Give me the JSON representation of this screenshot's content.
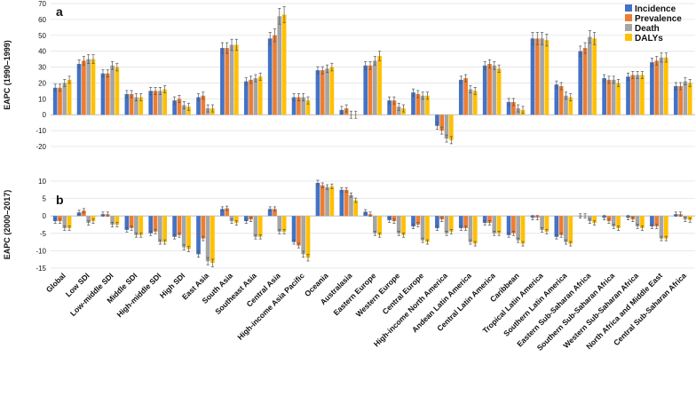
{
  "chart_data": [
    {
      "type": "bar",
      "panel_label": "a",
      "ylabel": "EAPC (1990–1999)",
      "ylim": [
        -20,
        70
      ],
      "yticks": [
        -20,
        -10,
        0,
        10,
        20,
        30,
        40,
        50,
        60,
        70
      ],
      "categories": [
        "Global",
        "Low SDI",
        "Low-middle SDI",
        "Middle SDI",
        "High-middle SDI",
        "High SDI",
        "East Asia",
        "South Asia",
        "Southeast Asia",
        "Central Asia",
        "High-income Asia Pacific",
        "Oceania",
        "Australasia",
        "Eastern Europe",
        "Western Europe",
        "Central Europe",
        "High-income North America",
        "Andean Latin America",
        "Central Latin America",
        "Caribbean",
        "Tropical Latin America",
        "Southern Latin America",
        "Eastern Sub-Saharan Africa",
        "Southern Sub-Saharan Africa",
        "Western Sub-Saharan Africa",
        "North Africa and Middle East",
        "Central Sub-Saharan Africa"
      ],
      "series": [
        {
          "name": "Incidence",
          "color": "#4472C4",
          "values": [
            17,
            32,
            26,
            13,
            15,
            9,
            11,
            42,
            21,
            48,
            11,
            28,
            3,
            31,
            9,
            14,
            -7,
            22,
            31,
            8,
            48,
            19,
            40,
            23,
            24,
            33,
            18
          ]
        },
        {
          "name": "Prevalence",
          "color": "#ED7D31",
          "values": [
            17,
            34,
            26,
            13,
            15,
            10,
            12,
            42,
            22,
            50,
            11,
            28,
            4,
            31,
            9,
            13,
            -10,
            23,
            32,
            8,
            48,
            18,
            42,
            22,
            25,
            34,
            18
          ]
        },
        {
          "name": "Death",
          "color": "#A5A5A5",
          "values": [
            20,
            35,
            31,
            11,
            15,
            6,
            4,
            44,
            23,
            62,
            11,
            29,
            0,
            34,
            5,
            12,
            -15,
            16,
            31,
            4,
            48,
            12,
            49,
            22,
            25,
            36,
            21
          ]
        },
        {
          "name": "DALYs",
          "color": "#FFC000",
          "values": [
            22,
            35,
            30,
            11,
            16,
            5,
            4,
            44,
            24,
            63,
            9,
            30,
            0,
            37,
            4,
            12,
            -16,
            15,
            29,
            3,
            47,
            11,
            48,
            20,
            25,
            36,
            20
          ]
        }
      ]
    },
    {
      "type": "bar",
      "panel_label": "b",
      "ylabel": "EAPC (2000–2017)",
      "ylim": [
        -15,
        10
      ],
      "yticks": [
        -15,
        -10,
        -5,
        0,
        5,
        10
      ],
      "categories": [
        "Global",
        "Low SDI",
        "Low-middle SDI",
        "Middle SDI",
        "High-middle SDI",
        "High SDI",
        "East Asia",
        "South Asia",
        "Southeast Asia",
        "Central Asia",
        "High-income Asia Pacific",
        "Oceania",
        "Australasia",
        "Eastern Europe",
        "Western Europe",
        "Central Europe",
        "High-income North America",
        "Andean Latin America",
        "Central Latin America",
        "Caribbean",
        "Tropical Latin America",
        "Southern Latin America",
        "Eastern Sub-Saharan Africa",
        "Southern Sub-Saharan Africa",
        "Western Sub-Saharan Africa",
        "North Africa and Middle East",
        "Central Sub-Saharan Africa"
      ],
      "series": [
        {
          "name": "Incidence",
          "color": "#4472C4",
          "values": [
            -1.5,
            1,
            0.5,
            -4,
            -5,
            -6,
            -11,
            2,
            -1.5,
            2,
            -7.5,
            9.5,
            7.5,
            1.2,
            -1.2,
            -3,
            -3.5,
            -3.5,
            -2,
            -5.5,
            -0.5,
            -6,
            0,
            -0.5,
            -0.5,
            -3,
            0.5
          ]
        },
        {
          "name": "Prevalence",
          "color": "#ED7D31",
          "values": [
            -1.5,
            1.5,
            0.5,
            -3.5,
            -4.5,
            -5.5,
            -6.5,
            2.2,
            -1,
            2,
            -8.5,
            8.8,
            7.5,
            0.5,
            -1.5,
            -2.5,
            -1,
            -3.5,
            -2,
            -5,
            -0.5,
            -5.5,
            0,
            -1.5,
            -1,
            -3,
            0.5
          ]
        },
        {
          "name": "Death",
          "color": "#A5A5A5",
          "values": [
            -3.5,
            -2,
            -2.5,
            -5.5,
            -7.5,
            -9,
            -13,
            -1.5,
            -6,
            -4.5,
            -11,
            8.3,
            6,
            -5,
            -5,
            -7,
            -5,
            -7.5,
            -5,
            -7,
            -4,
            -7.5,
            -1.5,
            -3,
            -3,
            -6.5,
            -1
          ]
        },
        {
          "name": "DALYs",
          "color": "#FFC000",
          "values": [
            -3.5,
            -1.5,
            -2.5,
            -5.5,
            -7.5,
            -9.5,
            -13.5,
            -2,
            -6,
            -4.5,
            -12,
            8.5,
            4.5,
            -5.5,
            -5.5,
            -7.5,
            -4.5,
            -8,
            -5,
            -8,
            -4.5,
            -8,
            -2,
            -3.5,
            -3.5,
            -6.5,
            -1.2
          ]
        }
      ]
    }
  ],
  "legend": [
    {
      "label": "Incidence",
      "color": "#4472C4"
    },
    {
      "label": "Prevalence",
      "color": "#ED7D31"
    },
    {
      "label": "Death",
      "color": "#A5A5A5"
    },
    {
      "label": "DALYs",
      "color": "#FFC000"
    }
  ]
}
